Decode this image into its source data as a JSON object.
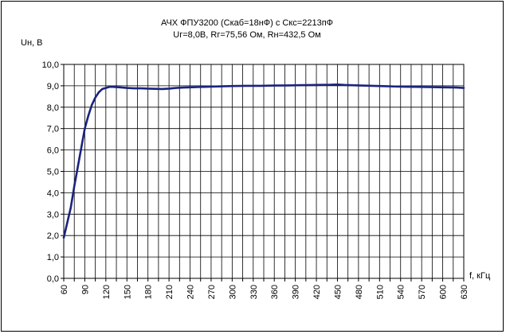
{
  "chart_data": {
    "type": "line",
    "title": "АЧХ ФПУ3200 (Скаб=18нФ) с Скс=2213пФ",
    "subtitle": "Uг=8,0В, Rг=75,56 Ом, Rн=432,5 Ом",
    "xlabel": "f, кГц",
    "ylabel": "Uн, В",
    "xlim": [
      60,
      630
    ],
    "ylim": [
      0,
      10
    ],
    "x_ticks": [
      60,
      75,
      90,
      105,
      120,
      135,
      150,
      165,
      180,
      195,
      210,
      225,
      240,
      255,
      270,
      285,
      300,
      315,
      330,
      345,
      360,
      375,
      390,
      405,
      420,
      435,
      450,
      465,
      480,
      495,
      510,
      525,
      540,
      555,
      570,
      585,
      600,
      615,
      630
    ],
    "x_tick_labels": [
      "60",
      "",
      "90",
      "",
      "120",
      "",
      "150",
      "",
      "180",
      "",
      "210",
      "",
      "240",
      "",
      "270",
      "",
      "300",
      "",
      "330",
      "",
      "360",
      "",
      "390",
      "",
      "420",
      "",
      "450",
      "",
      "480",
      "",
      "510",
      "",
      "540",
      "",
      "570",
      "",
      "600",
      "",
      "630"
    ],
    "y_ticks": [
      0,
      1,
      2,
      3,
      4,
      5,
      6,
      7,
      8,
      9,
      10
    ],
    "y_tick_labels": [
      "0,0",
      "1,0",
      "2,0",
      "3,0",
      "4,0",
      "5,0",
      "6,0",
      "7,0",
      "8,0",
      "9,0",
      "10,0"
    ],
    "grid": true,
    "series": [
      {
        "color": "#1a237e",
        "x": [
          60,
          65,
          70,
          75,
          80,
          85,
          90,
          95,
          100,
          105,
          110,
          115,
          120,
          125,
          130,
          140,
          150,
          160,
          170,
          180,
          190,
          200,
          210,
          220,
          230,
          240,
          250,
          260,
          270,
          280,
          290,
          300,
          320,
          340,
          360,
          380,
          400,
          420,
          440,
          450,
          460,
          480,
          500,
          520,
          540,
          560,
          580,
          600,
          620,
          630
        ],
        "y": [
          1.9,
          2.6,
          3.3,
          4.3,
          5.2,
          6.1,
          7.0,
          7.6,
          8.1,
          8.45,
          8.7,
          8.85,
          8.9,
          8.95,
          8.95,
          8.93,
          8.9,
          8.88,
          8.88,
          8.87,
          8.86,
          8.85,
          8.87,
          8.9,
          8.92,
          8.93,
          8.94,
          8.95,
          8.96,
          8.97,
          8.98,
          8.99,
          9.0,
          9.0,
          9.01,
          9.02,
          9.03,
          9.04,
          9.05,
          9.06,
          9.04,
          9.02,
          9.0,
          8.98,
          8.96,
          8.95,
          8.94,
          8.93,
          8.92,
          8.9
        ]
      }
    ]
  }
}
